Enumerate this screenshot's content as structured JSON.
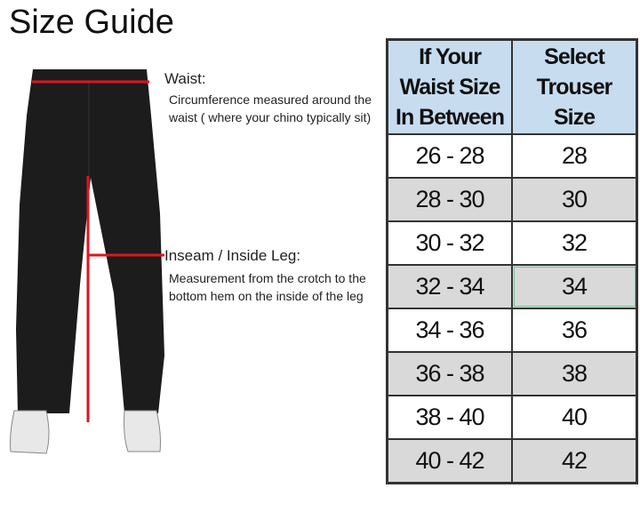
{
  "title": "Size Guide",
  "annotations": {
    "waist": {
      "heading": "Waist:",
      "description": "Circumference measured around the waist ( where your chino typically sit)"
    },
    "inseam": {
      "heading": "Inseam / Inside Leg:",
      "description": "Measurement from the crotch to the bottom hem on the inside of the leg"
    }
  },
  "colors": {
    "header_bg": "#c7dcef",
    "alt_row": "#d9d9d9",
    "measure_line": "#e0141e",
    "pants": "#1c1c1c"
  },
  "table": {
    "headers": [
      "If Your Waist Size In Between",
      "Select Trouser Size"
    ],
    "rows": [
      [
        "26 - 28",
        "28"
      ],
      [
        "28 - 30",
        "30"
      ],
      [
        "30 - 32",
        "32"
      ],
      [
        "32 - 34",
        "34"
      ],
      [
        "34 - 36",
        "36"
      ],
      [
        "36 - 38",
        "38"
      ],
      [
        "38 - 40",
        "40"
      ],
      [
        "40 - 42",
        "42"
      ]
    ]
  }
}
